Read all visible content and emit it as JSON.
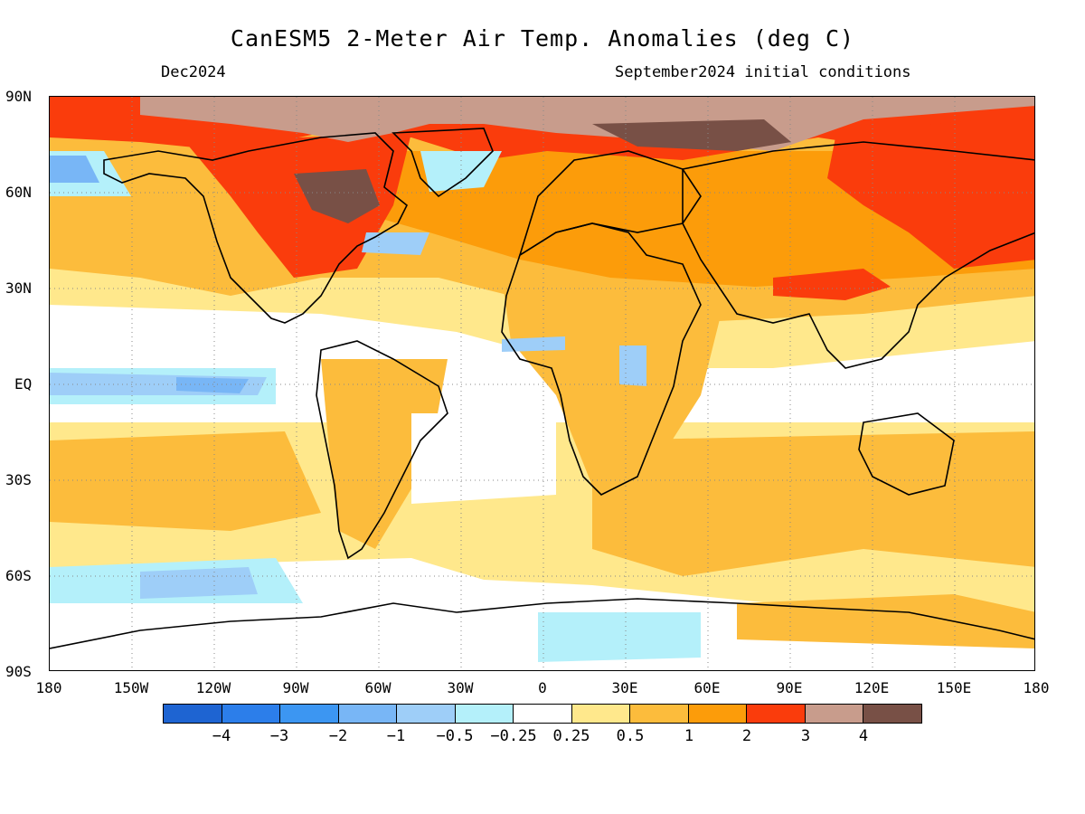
{
  "title": "CanESM5 2-Meter Air Temp. Anomalies (deg C)",
  "valid_month": "Dec2024",
  "init_conditions": "September2024 initial conditions",
  "lat_labels": [
    "90N",
    "60N",
    "30N",
    "EQ",
    "30S",
    "60S",
    "90S"
  ],
  "lon_labels": [
    "180",
    "150W",
    "120W",
    "90W",
    "60W",
    "30W",
    "0",
    "30E",
    "60E",
    "90E",
    "120E",
    "150E",
    "180"
  ],
  "colorbar": {
    "labels": [
      "−4",
      "−3",
      "−2",
      "−1",
      "−0.5",
      "−0.25",
      "0.25",
      "0.5",
      "1",
      "2",
      "3",
      "4"
    ],
    "colors": [
      "#1e64d2",
      "#2c7eea",
      "#3c96f2",
      "#78b6f6",
      "#9ecef8",
      "#b4f0fa",
      "#ffffff",
      "#ffe88c",
      "#fcbc3c",
      "#fc9c0a",
      "#fa3c0c",
      "#c89c8c",
      "#785046"
    ]
  },
  "colors": {
    "land_outline": "#000000",
    "grid": "#888888"
  }
}
